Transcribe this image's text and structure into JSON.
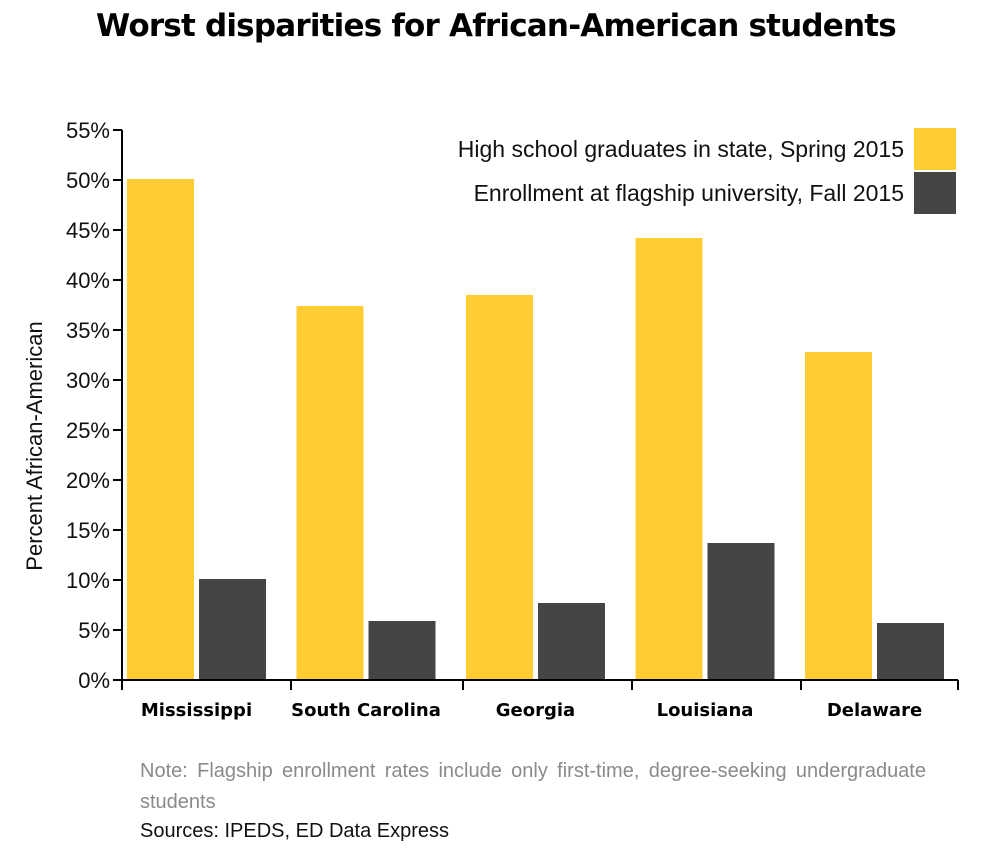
{
  "chart_data": {
    "type": "bar",
    "title": "Worst disparities for African-American students",
    "ylabel": "Percent African-American",
    "xlabel": "",
    "categories": [
      "Mississippi",
      "South Carolina",
      "Georgia",
      "Louisiana",
      "Delaware"
    ],
    "series": [
      {
        "name": "High school graduates in state, Spring 2015",
        "color": "#FFCC33",
        "values": [
          50.1,
          37.4,
          38.5,
          44.2,
          32.8
        ]
      },
      {
        "name": "Enrollment at flagship university, Fall 2015",
        "color": "#454545",
        "values": [
          10.1,
          5.9,
          7.7,
          13.7,
          5.7
        ]
      }
    ],
    "ylim": [
      0,
      55
    ],
    "yticks": [
      0,
      5,
      10,
      15,
      20,
      25,
      30,
      35,
      40,
      45,
      50,
      55
    ],
    "ytick_labels": [
      "0%",
      "5%",
      "10%",
      "15%",
      "20%",
      "25%",
      "30%",
      "35%",
      "40%",
      "45%",
      "50%",
      "55%"
    ],
    "legend_position": "top-right",
    "grid": false
  },
  "note": "Note: Flagship enrollment rates include only first-time, degree-seeking undergraduate students",
  "sources": "Sources: IPEDS, ED Data Express"
}
